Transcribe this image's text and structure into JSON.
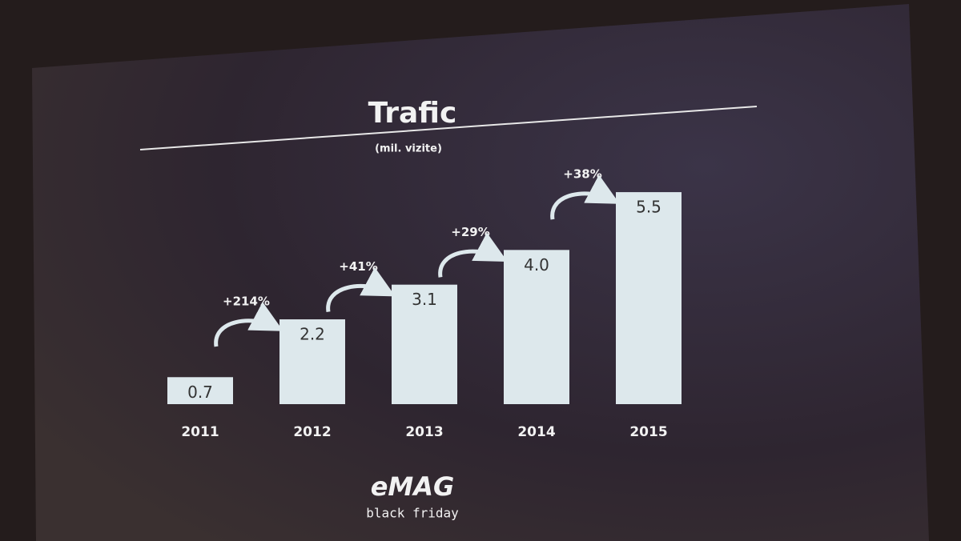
{
  "chart_data": {
    "type": "bar",
    "title": "Trafic",
    "subtitle": "(mil. vizite)",
    "categories": [
      "2011",
      "2012",
      "2013",
      "2014",
      "2015"
    ],
    "values": [
      0.7,
      2.2,
      3.1,
      4.0,
      5.5
    ],
    "value_labels": [
      "0.7",
      "2.2",
      "3.1",
      "4.0",
      "5.5"
    ],
    "annotations": [
      "+214%",
      "+41%",
      "+29%",
      "+38%"
    ],
    "color": "#dde8ec",
    "ylim": [
      0,
      6
    ]
  },
  "brand": {
    "name": "eMAG",
    "tagline": "black friday"
  }
}
